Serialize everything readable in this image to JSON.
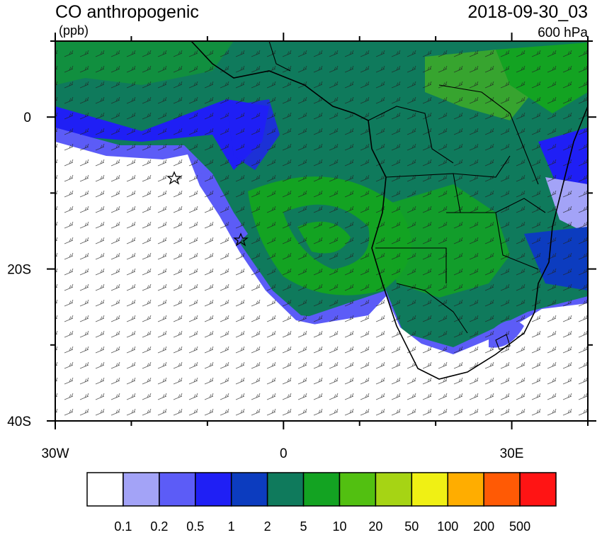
{
  "header": {
    "title": "CO anthropogenic",
    "units": "(ppb)",
    "date": "2018-09-30_03",
    "level": "600 hPa"
  },
  "map": {
    "xlim": [
      -30,
      40
    ],
    "ylim": [
      -40,
      10
    ],
    "xticks": [
      {
        "value": -30,
        "label": "30W"
      },
      0,
      {
        "value": 30,
        "label": "30E"
      }
    ],
    "yticks": [
      0,
      {
        "value": -20,
        "label": "20S"
      },
      {
        "value": -40,
        "label": "40S"
      }
    ],
    "xminorticks": [
      -20,
      -10,
      10,
      20,
      40
    ],
    "yminorticks": [
      10,
      -10,
      -30
    ]
  },
  "colorbar": {
    "colors": [
      "#ffffff",
      "#a3a3f7",
      "#5c5cf7",
      "#1f1ff5",
      "#0c3cbf",
      "#0f7a5c",
      "#13a322",
      "#52c011",
      "#a6d414",
      "#f0f014",
      "#ffad00",
      "#ff5a05",
      "#ff1414"
    ],
    "levels": [
      0.1,
      0.2,
      0.5,
      1,
      2,
      5,
      10,
      20,
      50,
      100,
      200,
      500
    ]
  }
}
